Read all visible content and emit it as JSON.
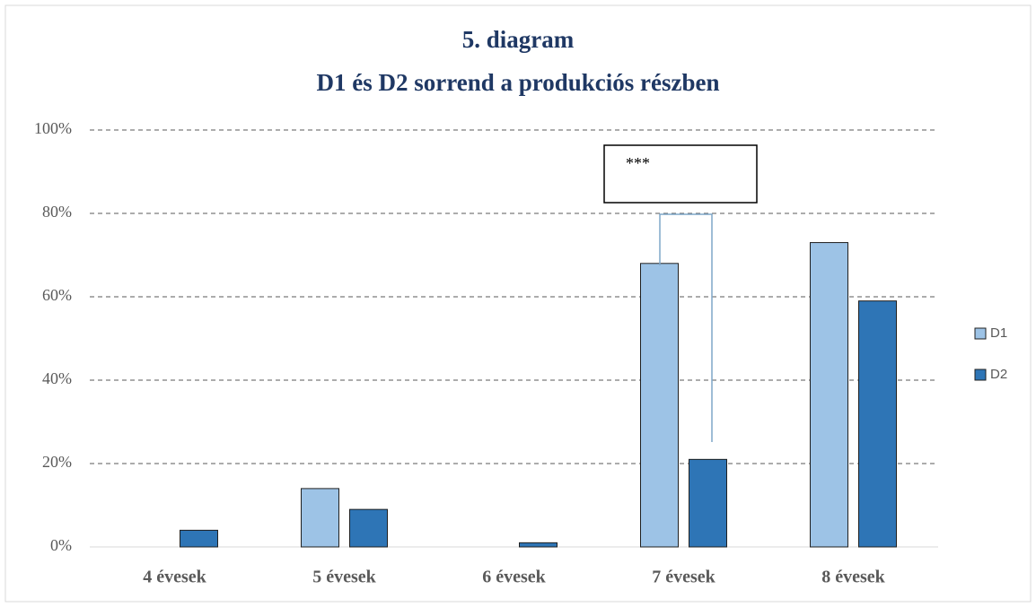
{
  "chart_data": {
    "type": "bar",
    "title": [
      "5. diagram",
      "D1 és D2 sorrend a produkciós részben"
    ],
    "categories": [
      "4 évesek",
      "5 évesek",
      "6 évesek",
      "7 évesek",
      "8 évesek"
    ],
    "series": [
      {
        "name": "D1",
        "color": "#9dc3e6",
        "values": [
          0,
          14,
          0,
          68,
          73
        ]
      },
      {
        "name": "D2",
        "color": "#2e75b6",
        "values": [
          4,
          9,
          1,
          21,
          59
        ]
      }
    ],
    "ylim": [
      0,
      100
    ],
    "yticks": [
      {
        "value": 0,
        "label": "0%"
      },
      {
        "value": 20,
        "label": "20%"
      },
      {
        "value": 40,
        "label": "40%"
      },
      {
        "value": 60,
        "label": "60%"
      },
      {
        "value": 80,
        "label": "80%"
      },
      {
        "value": 100,
        "label": "100%"
      }
    ],
    "grid": true,
    "legend": "right",
    "annotations": [
      "***"
    ]
  }
}
